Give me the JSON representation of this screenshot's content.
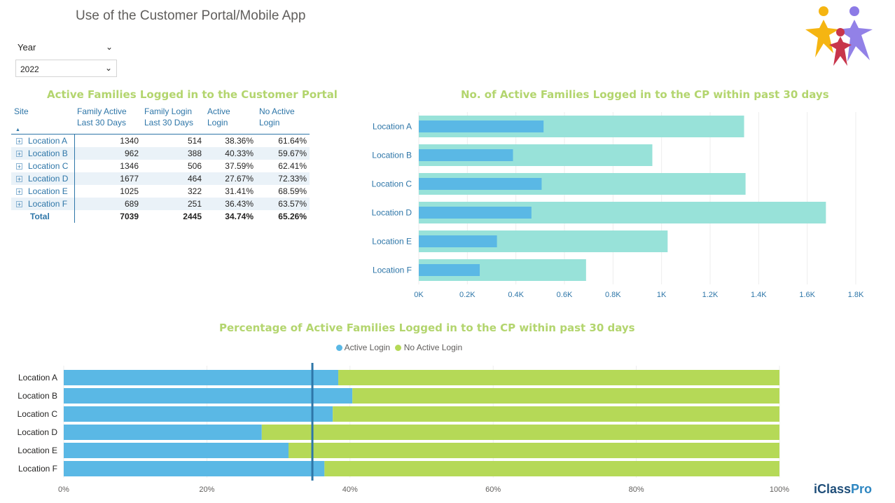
{
  "page": {
    "title": "Use of the Customer Portal/Mobile App"
  },
  "slicer": {
    "label": "Year",
    "value": "2022"
  },
  "colors": {
    "title_green": "#B3D56E",
    "active_blue": "#5AB8E5",
    "total_teal": "#98E2D9",
    "no_active_green": "#B5D957",
    "ref_line": "#2E76A8",
    "label_blue": "#2E76A8"
  },
  "table": {
    "title": "Active Families Logged in to the Customer Portal",
    "headers": {
      "site": "Site",
      "family_active_1": "Family Active",
      "family_active_2": "Last 30 Days",
      "family_login_1": "Family Login",
      "family_login_2": "Last 30 Days",
      "active_login_1": "Active",
      "active_login_2": "Login",
      "no_active_1": "No Active",
      "no_active_2": "Login"
    },
    "rows": [
      {
        "site": "Location A",
        "active": "1340",
        "login": "514",
        "pct": "38.36%",
        "no_pct": "61.64%"
      },
      {
        "site": "Location B",
        "active": "962",
        "login": "388",
        "pct": "40.33%",
        "no_pct": "59.67%"
      },
      {
        "site": "Location C",
        "active": "1346",
        "login": "506",
        "pct": "37.59%",
        "no_pct": "62.41%"
      },
      {
        "site": "Location D",
        "active": "1677",
        "login": "464",
        "pct": "27.67%",
        "no_pct": "72.33%"
      },
      {
        "site": "Location E",
        "active": "1025",
        "login": "322",
        "pct": "31.41%",
        "no_pct": "68.59%"
      },
      {
        "site": "Location F",
        "active": "689",
        "login": "251",
        "pct": "36.43%",
        "no_pct": "63.57%"
      }
    ],
    "total": {
      "site": "Total",
      "active": "7039",
      "login": "2445",
      "pct": "34.74%",
      "no_pct": "65.26%"
    }
  },
  "chart_data": [
    {
      "type": "bar",
      "orientation": "horizontal",
      "title": "No. of Active Families Logged in to the CP within past 30 days",
      "categories": [
        "Location A",
        "Location B",
        "Location C",
        "Location D",
        "Location E",
        "Location F"
      ],
      "series": [
        {
          "name": "Family Active Last 30 Days",
          "values": [
            1340,
            962,
            1346,
            1677,
            1025,
            689
          ]
        },
        {
          "name": "Family Login Last 30 Days",
          "values": [
            514,
            388,
            506,
            464,
            322,
            251
          ]
        }
      ],
      "xlim": [
        0,
        1800
      ],
      "ticks": [
        "0K",
        "0.2K",
        "0.4K",
        "0.6K",
        "0.8K",
        "1K",
        "1.2K",
        "1.4K",
        "1.6K",
        "1.8K"
      ],
      "grid": true
    },
    {
      "type": "bar",
      "orientation": "horizontal",
      "stacked": "percent",
      "title": "Percentage of Active Families Logged in to the CP within past 30 days",
      "categories": [
        "Location A",
        "Location B",
        "Location C",
        "Location D",
        "Location E",
        "Location F"
      ],
      "series": [
        {
          "name": "Active Login",
          "values": [
            38.36,
            40.33,
            37.59,
            27.67,
            31.41,
            36.43
          ]
        },
        {
          "name": "No Active Login",
          "values": [
            61.64,
            59.67,
            62.41,
            72.33,
            68.59,
            63.57
          ]
        }
      ],
      "reference_line": 34.74,
      "xlim": [
        0,
        100
      ],
      "ticks": [
        "0%",
        "20%",
        "40%",
        "60%",
        "80%",
        "100%"
      ],
      "legend": "top-center",
      "grid": true
    }
  ],
  "brand": {
    "logo_main": "iClass",
    "logo_accent": "Pro"
  }
}
